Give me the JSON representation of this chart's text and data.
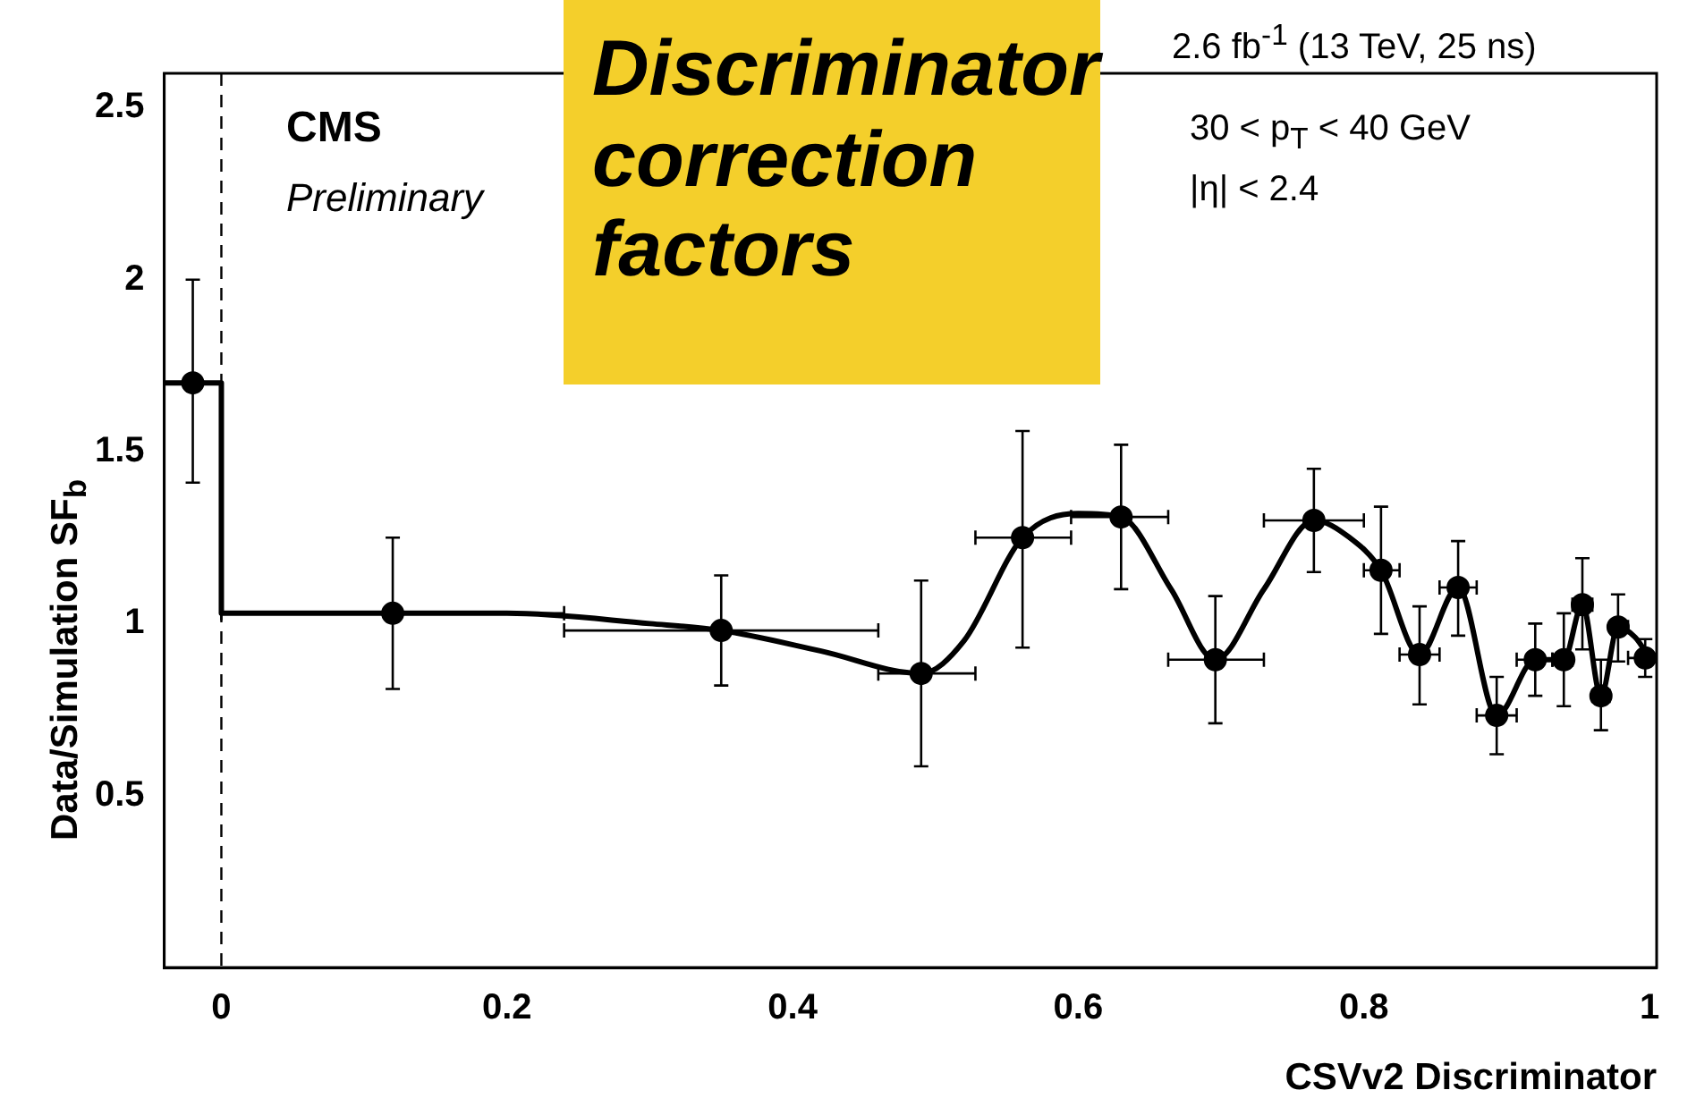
{
  "chart_data": {
    "type": "scatter",
    "title": "Discriminator correction factors",
    "xlabel": "CSVv2 Discriminator",
    "ylabel": "Data/Simulation SF$_{b}$",
    "annotations": [
      "CMS",
      "Preliminary",
      "2.6 fb$^{-1}$ (13 TeV, 25 ns)",
      "30 < p$_{T}$ < 40 GeV",
      "|η| < 2.4"
    ],
    "xlim": [
      -0.04,
      1.005
    ],
    "xticks": [
      0,
      0.2,
      0.4,
      0.6,
      0.8,
      1
    ],
    "ylim": [
      0,
      2.6
    ],
    "yticks": [
      0.5,
      1,
      1.5,
      2,
      2.5
    ],
    "grid": false,
    "legend": false,
    "ref_lines": [
      {
        "axis": "x",
        "value": 0,
        "line_style": "dashed",
        "color": "#000000"
      }
    ],
    "series": [
      {
        "color": "#000000",
        "marker": "circle",
        "x": [
          -0.02,
          0.12,
          0.35,
          0.49,
          0.561,
          0.63,
          0.696,
          0.765,
          0.812,
          0.839,
          0.866,
          0.893,
          0.92,
          0.94,
          0.953,
          0.966,
          0.978,
          0.997
        ],
        "values": [
          1.7,
          1.03,
          0.98,
          0.855,
          1.25,
          1.31,
          0.895,
          1.3,
          1.155,
          0.91,
          1.105,
          0.733,
          0.895,
          0.895,
          1.055,
          0.79,
          0.99,
          0.9
        ],
        "errors": [
          [
            1.41,
            2.0
          ],
          [
            0.81,
            1.25
          ],
          [
            0.82,
            1.14
          ],
          [
            0.585,
            1.125
          ],
          [
            0.93,
            1.56
          ],
          [
            1.1,
            1.52
          ],
          [
            0.71,
            1.08
          ],
          [
            1.15,
            1.45
          ],
          [
            0.97,
            1.34
          ],
          [
            0.765,
            1.05
          ],
          [
            0.965,
            1.24
          ],
          [
            0.62,
            0.845
          ],
          [
            0.79,
            1.0
          ],
          [
            0.76,
            1.03
          ],
          [
            0.925,
            1.19
          ],
          [
            0.69,
            0.895
          ],
          [
            0.89,
            1.085
          ],
          [
            0.845,
            0.955
          ]
        ],
        "xerrors": [
          null,
          [
            0,
            0.24
          ],
          [
            0.24,
            0.46
          ],
          [
            0.46,
            0.528
          ],
          [
            0.528,
            0.595
          ],
          [
            0.595,
            0.663
          ],
          [
            0.663,
            0.73
          ],
          [
            0.73,
            0.8
          ],
          [
            0.8,
            0.825
          ],
          [
            0.825,
            0.853
          ],
          [
            0.853,
            0.879
          ],
          [
            0.879,
            0.907
          ],
          [
            0.907,
            0.932
          ],
          [
            0.932,
            0.946
          ],
          [
            0.946,
            0.96
          ],
          [
            0.96,
            0.972
          ],
          [
            0.975,
            0.985
          ],
          [
            0.985,
            1.0
          ]
        ]
      },
      {
        "type": "line",
        "color": "#000000",
        "x": [
          -0.04,
          0,
          0,
          0.12,
          0.2,
          0.3,
          0.35,
          0.42,
          0.49,
          0.52,
          0.561,
          0.6,
          0.63,
          0.665,
          0.696,
          0.73,
          0.765,
          0.79,
          0.812,
          0.839,
          0.866,
          0.893,
          0.92,
          0.94,
          0.953,
          0.966,
          0.978,
          0.99,
          1.0
        ],
        "values": [
          1.7,
          1.7,
          1.03,
          1.03,
          1.03,
          1.0,
          0.98,
          0.92,
          0.855,
          0.95,
          1.25,
          1.32,
          1.31,
          1.1,
          0.895,
          1.1,
          1.3,
          1.25,
          1.155,
          0.91,
          1.105,
          0.733,
          0.895,
          0.895,
          1.055,
          0.79,
          0.99,
          0.96,
          0.9
        ]
      }
    ]
  }
}
